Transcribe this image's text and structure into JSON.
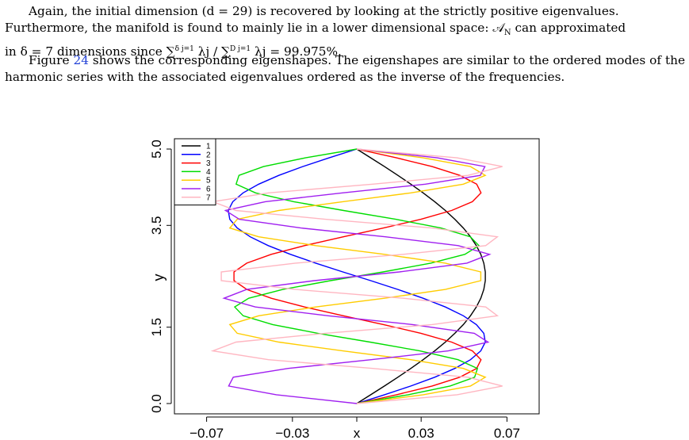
{
  "text": {
    "p1_line1": "Again, the initial dimension (d = 29) is recovered by looking at the strictly positive eigenvalues.",
    "p1_line2": "Furthermore, the manifold is found to mainly lie in a lower dimensional space: 𝒜",
    "p1_line2_sub": "N",
    "p1_line2_tail": " can approximated",
    "p1_line3": "in δ = 7 dimensions since ∑",
    "p1_line3_a": "δ j=1",
    "p1_line3_b": " λj / ∑",
    "p1_line3_c": "D j=1",
    "p1_line3_d": " λj = 99.975%.",
    "p2_ref_pre": "Figure ",
    "p2_ref": "24",
    "p2_rest": " shows the corresponding eigenshapes. The eigenshapes are similar to the ordered modes of the harmonic series with the associated eigenvalues ordered as the inverse of the frequencies."
  },
  "chart_data": {
    "type": "line",
    "xlabel": "x",
    "ylabel": "y",
    "xlim": [
      -0.085,
      0.085
    ],
    "ylim": [
      0.0,
      5.0
    ],
    "x_ticks": [
      "−0.07",
      "−0.03",
      "x",
      "0.03",
      "0.07"
    ],
    "x_tick_values": [
      -0.07,
      -0.03,
      0.0,
      0.03,
      0.07
    ],
    "y_ticks": [
      "0.0",
      "1.5",
      "3.5",
      "5.0"
    ],
    "y_tick_values": [
      0.0,
      1.5,
      3.5,
      5.0
    ],
    "legend_position": "top-left",
    "series": [
      {
        "name": "1",
        "color": "#000000",
        "amplitude": 0.06,
        "harmonic": 1,
        "phase": 0
      },
      {
        "name": "2",
        "color": "#0000ff",
        "amplitude": 0.06,
        "harmonic": 2,
        "phase": 0
      },
      {
        "name": "3",
        "color": "#ff0000",
        "amplitude": 0.058,
        "harmonic": 3,
        "phase": 0
      },
      {
        "name": "4",
        "color": "#00dd00",
        "amplitude": 0.057,
        "harmonic": 4,
        "phase": 0
      },
      {
        "name": "5",
        "color": "#ffcc00",
        "amplitude": 0.06,
        "harmonic": 5,
        "phase": 0
      },
      {
        "name": "6",
        "color": "#a020f0",
        "amplitude": -0.062,
        "harmonic": 6,
        "phase": 0
      },
      {
        "name": "7",
        "color": "#ffb6c1",
        "amplitude": 0.068,
        "harmonic": 7,
        "phase": 0
      }
    ]
  }
}
